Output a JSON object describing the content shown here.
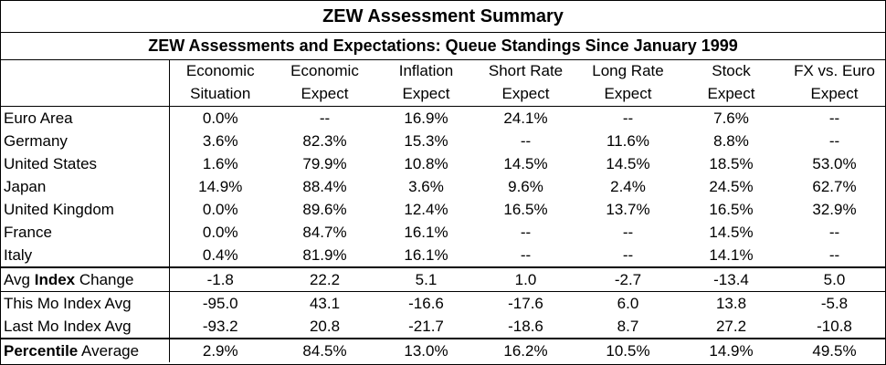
{
  "title": "ZEW Assessment Summary",
  "subtitle": "ZEW Assessments and Expectations: Queue Standings Since January 1999",
  "columns": [
    {
      "line1": "Economic",
      "line2": "Situation"
    },
    {
      "line1": "Economic",
      "line2": "Expect"
    },
    {
      "line1": "Inflation",
      "line2": "Expect"
    },
    {
      "line1": "Short Rate",
      "line2": "Expect"
    },
    {
      "line1": "Long Rate",
      "line2": "Expect"
    },
    {
      "line1": "Stock",
      "line2": "Expect"
    },
    {
      "line1": "FX vs. Euro",
      "line2": "Expect"
    }
  ],
  "rows": [
    {
      "label": "Euro Area",
      "values": [
        "0.0%",
        "--",
        "16.9%",
        "24.1%",
        "--",
        "7.6%",
        "--"
      ]
    },
    {
      "label": "Germany",
      "values": [
        "3.6%",
        "82.3%",
        "15.3%",
        "--",
        "11.6%",
        "8.8%",
        "--"
      ]
    },
    {
      "label": "United States",
      "values": [
        "1.6%",
        "79.9%",
        "10.8%",
        "14.5%",
        "14.5%",
        "18.5%",
        "53.0%"
      ]
    },
    {
      "label": "Japan",
      "values": [
        "14.9%",
        "88.4%",
        "3.6%",
        "9.6%",
        "2.4%",
        "24.5%",
        "62.7%"
      ]
    },
    {
      "label": "United Kingdom",
      "values": [
        "0.0%",
        "89.6%",
        "12.4%",
        "16.5%",
        "13.7%",
        "16.5%",
        "32.9%"
      ]
    },
    {
      "label": "France",
      "values": [
        "0.0%",
        "84.7%",
        "16.1%",
        "--",
        "--",
        "14.5%",
        "--"
      ]
    },
    {
      "label": "Italy",
      "values": [
        "0.4%",
        "81.9%",
        "16.1%",
        "--",
        "--",
        "14.1%",
        "--"
      ]
    }
  ],
  "avg_index_change": {
    "label_pre": "Avg ",
    "label_bold": "Index",
    "label_post": " Change",
    "values": [
      "-1.8",
      "22.2",
      "5.1",
      "1.0",
      "-2.7",
      "-13.4",
      "5.0"
    ]
  },
  "this_mo": {
    "label": "This Mo Index Avg",
    "values": [
      "-95.0",
      "43.1",
      "-16.6",
      "-17.6",
      "6.0",
      "13.8",
      "-5.8"
    ]
  },
  "last_mo": {
    "label": "Last Mo Index Avg",
    "values": [
      "-93.2",
      "20.8",
      "-21.7",
      "-18.6",
      "8.7",
      "27.2",
      "-10.8"
    ]
  },
  "percentile": {
    "label_bold": "Percentile",
    "label_post": " Average",
    "values": [
      "2.9%",
      "84.5%",
      "13.0%",
      "16.2%",
      "10.5%",
      "14.9%",
      "49.5%"
    ]
  }
}
